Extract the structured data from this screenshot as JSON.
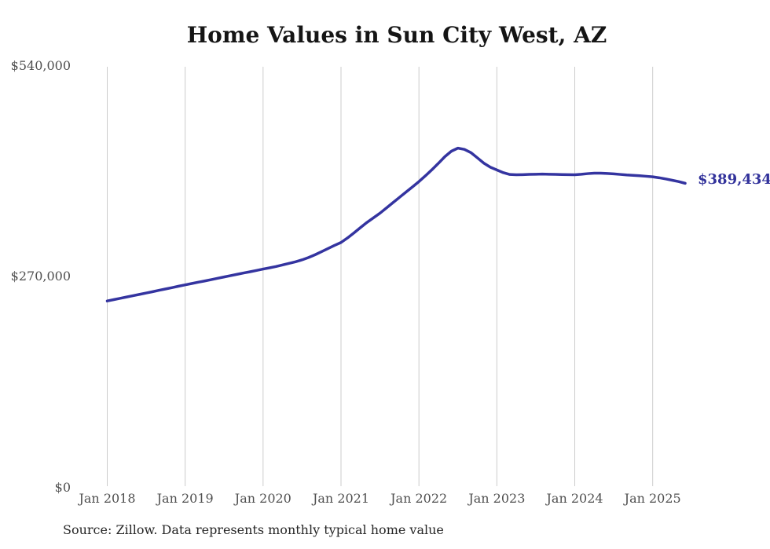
{
  "chart": {
    "title": "Home Values in Sun City West, AZ",
    "end_label": "$389,434",
    "source_note": "Source: Zillow. Data represents monthly typical home value",
    "line_color": "#3434a0",
    "end_label_color": "#32329b",
    "grid_color": "#cccccc",
    "tick_label_color": "#4f4f4f"
  },
  "chart_data": {
    "type": "line",
    "title": "Home Values in Sun City West, AZ",
    "series_name": "Typical home value (USD)",
    "x": [
      "2018-01",
      "2018-02",
      "2018-03",
      "2018-04",
      "2018-05",
      "2018-06",
      "2018-07",
      "2018-08",
      "2018-09",
      "2018-10",
      "2018-11",
      "2018-12",
      "2019-01",
      "2019-02",
      "2019-03",
      "2019-04",
      "2019-05",
      "2019-06",
      "2019-07",
      "2019-08",
      "2019-09",
      "2019-10",
      "2019-11",
      "2019-12",
      "2020-01",
      "2020-02",
      "2020-03",
      "2020-04",
      "2020-05",
      "2020-06",
      "2020-07",
      "2020-08",
      "2020-09",
      "2020-10",
      "2020-11",
      "2020-12",
      "2021-01",
      "2021-02",
      "2021-03",
      "2021-04",
      "2021-05",
      "2021-06",
      "2021-07",
      "2021-08",
      "2021-09",
      "2021-10",
      "2021-11",
      "2021-12",
      "2022-01",
      "2022-02",
      "2022-03",
      "2022-04",
      "2022-05",
      "2022-06",
      "2022-07",
      "2022-08",
      "2022-09",
      "2022-10",
      "2022-11",
      "2022-12",
      "2023-01",
      "2023-02",
      "2023-03",
      "2023-04",
      "2023-05",
      "2023-06",
      "2023-07",
      "2023-08",
      "2023-09",
      "2023-10",
      "2023-11",
      "2023-12",
      "2024-01",
      "2024-02",
      "2024-03",
      "2024-04",
      "2024-05",
      "2024-06",
      "2024-07",
      "2024-08",
      "2024-09",
      "2024-10",
      "2024-11",
      "2024-12",
      "2025-01",
      "2025-02",
      "2025-03",
      "2025-04",
      "2025-05",
      "2025-06"
    ],
    "values": [
      238900,
      240600,
      242300,
      244000,
      245700,
      247400,
      249100,
      250800,
      252600,
      254300,
      256000,
      257800,
      259500,
      261200,
      262900,
      264500,
      266200,
      267900,
      269600,
      271300,
      273000,
      274700,
      276300,
      278000,
      279700,
      281300,
      283000,
      285000,
      287000,
      289000,
      291500,
      294500,
      298000,
      302000,
      306000,
      310000,
      313700,
      319500,
      326000,
      332800,
      339400,
      345300,
      351200,
      357900,
      364700,
      371400,
      378100,
      384800,
      391600,
      399000,
      406800,
      415000,
      423600,
      430500,
      434400,
      432800,
      428700,
      422000,
      415200,
      410000,
      406500,
      403000,
      400700,
      400300,
      400500,
      400800,
      401000,
      401200,
      401000,
      400800,
      400600,
      400500,
      400400,
      401000,
      401800,
      402400,
      402400,
      402000,
      401500,
      400800,
      400100,
      399600,
      399100,
      398400,
      397700,
      396500,
      395000,
      393300,
      391600,
      389434
    ],
    "last_value": 389434,
    "end_annotation": "$389,434",
    "x_tick_labels": [
      "Jan 2018",
      "Jan 2019",
      "Jan 2020",
      "Jan 2021",
      "Jan 2022",
      "Jan 2023",
      "Jan 2024",
      "Jan 2025"
    ],
    "y_ticks": [
      0,
      270000,
      540000
    ],
    "y_tick_labels": [
      "$0",
      "$270,000",
      "$540,000"
    ],
    "ylim": [
      0,
      540000
    ],
    "grid": "vertical-only",
    "legend": "none",
    "source": "Source: Zillow. Data represents monthly typical home value"
  }
}
